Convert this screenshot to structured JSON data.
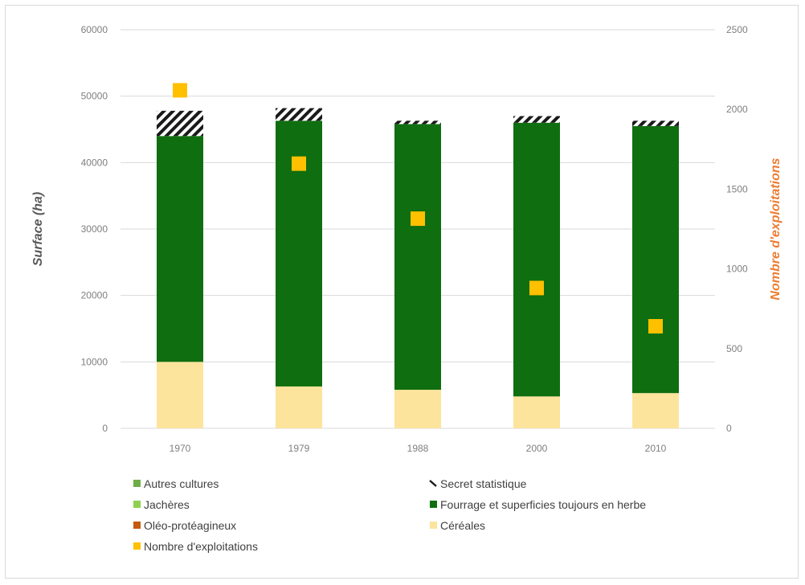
{
  "chart_data": {
    "type": "bar",
    "stacked": true,
    "categories": [
      "1970",
      "1979",
      "1988",
      "2000",
      "2010"
    ],
    "ylabel": "Surface (ha)",
    "y2label": "Nombre d'exploitations",
    "ylim": [
      0,
      60000
    ],
    "y2lim": [
      0,
      2500
    ],
    "yticks": [
      "0",
      "10000",
      "20000",
      "30000",
      "40000",
      "50000",
      "60000"
    ],
    "y2ticks": [
      "0",
      "500",
      "1000",
      "1500",
      "2000",
      "2500"
    ],
    "grid": true,
    "legend_position": "bottom",
    "series": [
      {
        "name": "Céréales",
        "axis": "left",
        "color": "#fde49c",
        "values": [
          10000,
          6300,
          5800,
          4800,
          5300
        ]
      },
      {
        "name": "Oléo-protéagineux",
        "axis": "left",
        "color": "#c55a11",
        "values": [
          0,
          0,
          0,
          0,
          0
        ]
      },
      {
        "name": "Jachères",
        "axis": "left",
        "color": "#8fd14f",
        "values": [
          0,
          0,
          0,
          0,
          0
        ]
      },
      {
        "name": "Autres cultures",
        "axis": "left",
        "color": "#70ad47",
        "values": [
          0,
          0,
          0,
          0,
          0
        ]
      },
      {
        "name": "Fourrage et superficies toujours en herbe",
        "axis": "left",
        "color": "#0f6e0f",
        "values": [
          34000,
          40000,
          40000,
          41200,
          40200
        ]
      },
      {
        "name": "Secret statistique",
        "axis": "left",
        "pattern": "hatch",
        "values": [
          3800,
          1900,
          500,
          1000,
          800
        ]
      },
      {
        "name": "Nombre d'exploitations",
        "axis": "right",
        "type": "scatter",
        "color": "#ffc000",
        "values": [
          2120,
          1660,
          1315,
          880,
          640
        ]
      }
    ],
    "legend": [
      {
        "label": "Autres cultures",
        "swatch": "#70ad47"
      },
      {
        "label": "Secret statistique",
        "swatch": "hatch"
      },
      {
        "label": "Jachères",
        "swatch": "#8fd14f"
      },
      {
        "label": "Fourrage et superficies toujours en herbe",
        "swatch": "#0f6e0f"
      },
      {
        "label": "Oléo-protéagineux",
        "swatch": "#c55a11"
      },
      {
        "label": "Céréales",
        "swatch": "#fde49c"
      },
      {
        "label": "Nombre d'exploitations",
        "swatch": "#ffc000"
      }
    ]
  }
}
